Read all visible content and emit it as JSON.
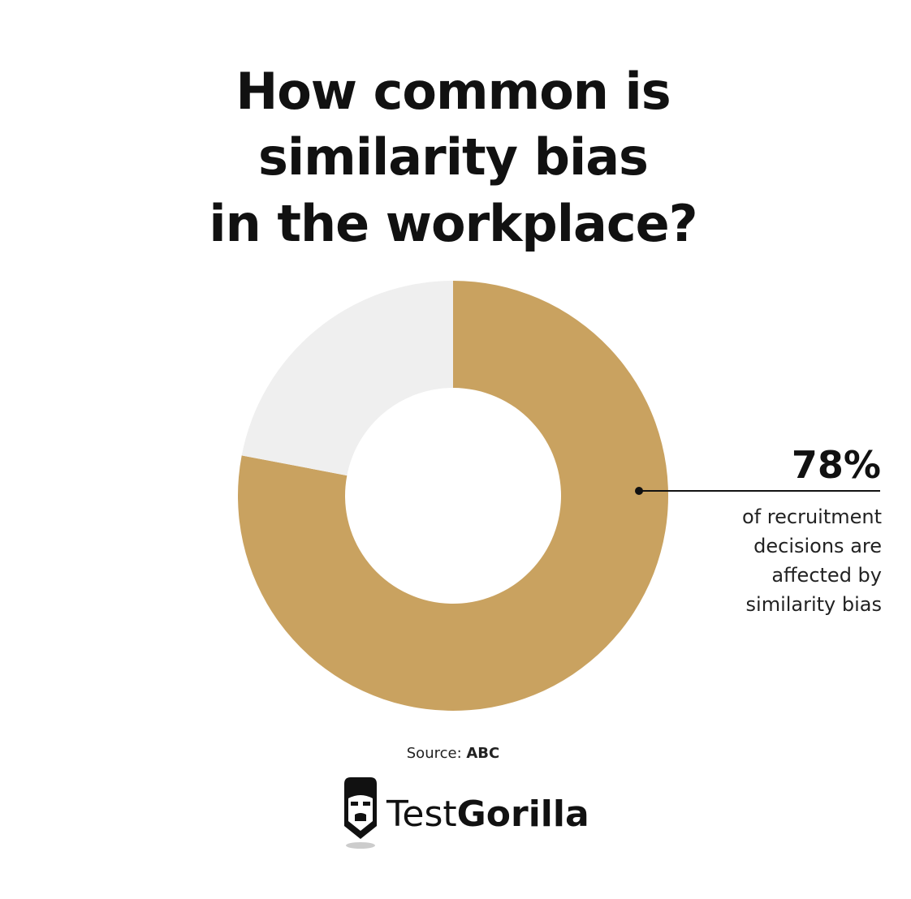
{
  "chart_data": {
    "type": "donut",
    "title": [
      "How common is",
      "similarity bias",
      "in the workplace?"
    ],
    "values": [
      78,
      22
    ],
    "value_labels": [
      "78%",
      null
    ],
    "colors": [
      "#c9a260",
      "#efefef"
    ],
    "annotation": [
      "of recruitment",
      "decisions are",
      "affected by",
      "similarity bias"
    ],
    "source": {
      "label": "Source:",
      "name": "ABC"
    },
    "logo": [
      "Test",
      "Gorilla"
    ]
  }
}
